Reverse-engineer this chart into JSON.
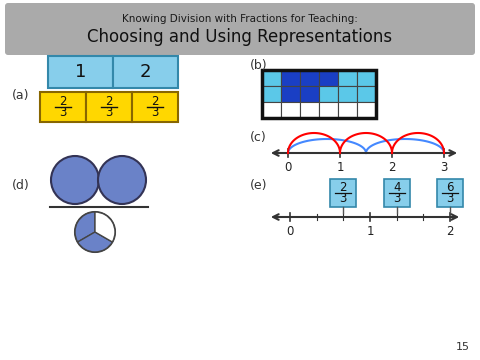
{
  "title_line1": "Knowing Division with Fractions for Teaching:",
  "title_line2": "Choosing and Using Representations",
  "title_bg": "#aaaaaa",
  "bg_color": "#ffffff",
  "label_a": "(a)",
  "label_b": "(b)",
  "label_c": "(c)",
  "label_d": "(d)",
  "label_e": "(e)",
  "box_blue_light": "#87CEEB",
  "box_yellow": "#FFD700",
  "box_blue_dark": "#1a3fc4",
  "box_blue_mid": "#5bc8e8",
  "circle_blue": "#6a82c8",
  "page_number": "15",
  "grid_colors": [
    [
      "#5bc8e8",
      "#1a3fc4",
      "#1a3fc4",
      "#1a3fc4",
      "#5bc8e8",
      "#5bc8e8"
    ],
    [
      "#5bc8e8",
      "#1a3fc4",
      "#1a3fc4",
      "#5bc8e8",
      "#5bc8e8",
      "#5bc8e8"
    ],
    [
      "#ffffff",
      "#ffffff",
      "#ffffff",
      "#ffffff",
      "#ffffff",
      "#ffffff"
    ]
  ]
}
